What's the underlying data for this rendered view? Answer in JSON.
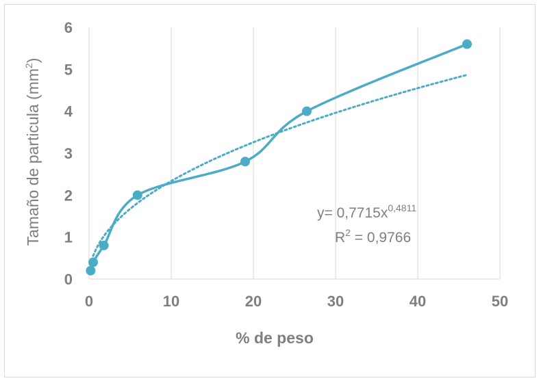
{
  "chart_data": {
    "type": "scatter",
    "title": "",
    "xlabel": "% de peso",
    "ylabel": {
      "main": "Tamaño de particula (mm",
      "sup": "2",
      "close": ")"
    },
    "xlim": [
      0,
      50
    ],
    "ylim": [
      0,
      6
    ],
    "xticks": [
      "0",
      "10",
      "20",
      "30",
      "40",
      "50"
    ],
    "yticks": [
      "0",
      "1",
      "2",
      "3",
      "4",
      "5",
      "6"
    ],
    "grid": "vertical",
    "series": [
      {
        "points": [
          {
            "x": 0.2,
            "y": 0.2
          },
          {
            "x": 0.5,
            "y": 0.4
          },
          {
            "x": 1.8,
            "y": 0.8
          },
          {
            "x": 5.9,
            "y": 2.0
          },
          {
            "x": 19.0,
            "y": 2.8
          },
          {
            "x": 26.5,
            "y": 4.0
          },
          {
            "x": 46.0,
            "y": 5.6
          }
        ],
        "line": "smooth",
        "color": "#4bacc6"
      }
    ],
    "trendline": {
      "type": "power",
      "a": 0.7715,
      "b": 0.4811,
      "x_range": [
        0.5,
        46.0
      ],
      "style": "dotted",
      "color": "#4bacc6"
    },
    "annotations": {
      "equation_prefix": "y= 0,7715x",
      "equation_exponent": "0,4811",
      "r2_prefix": "R",
      "r2_sup": "2",
      "r2_value": " = 0,9766"
    }
  }
}
